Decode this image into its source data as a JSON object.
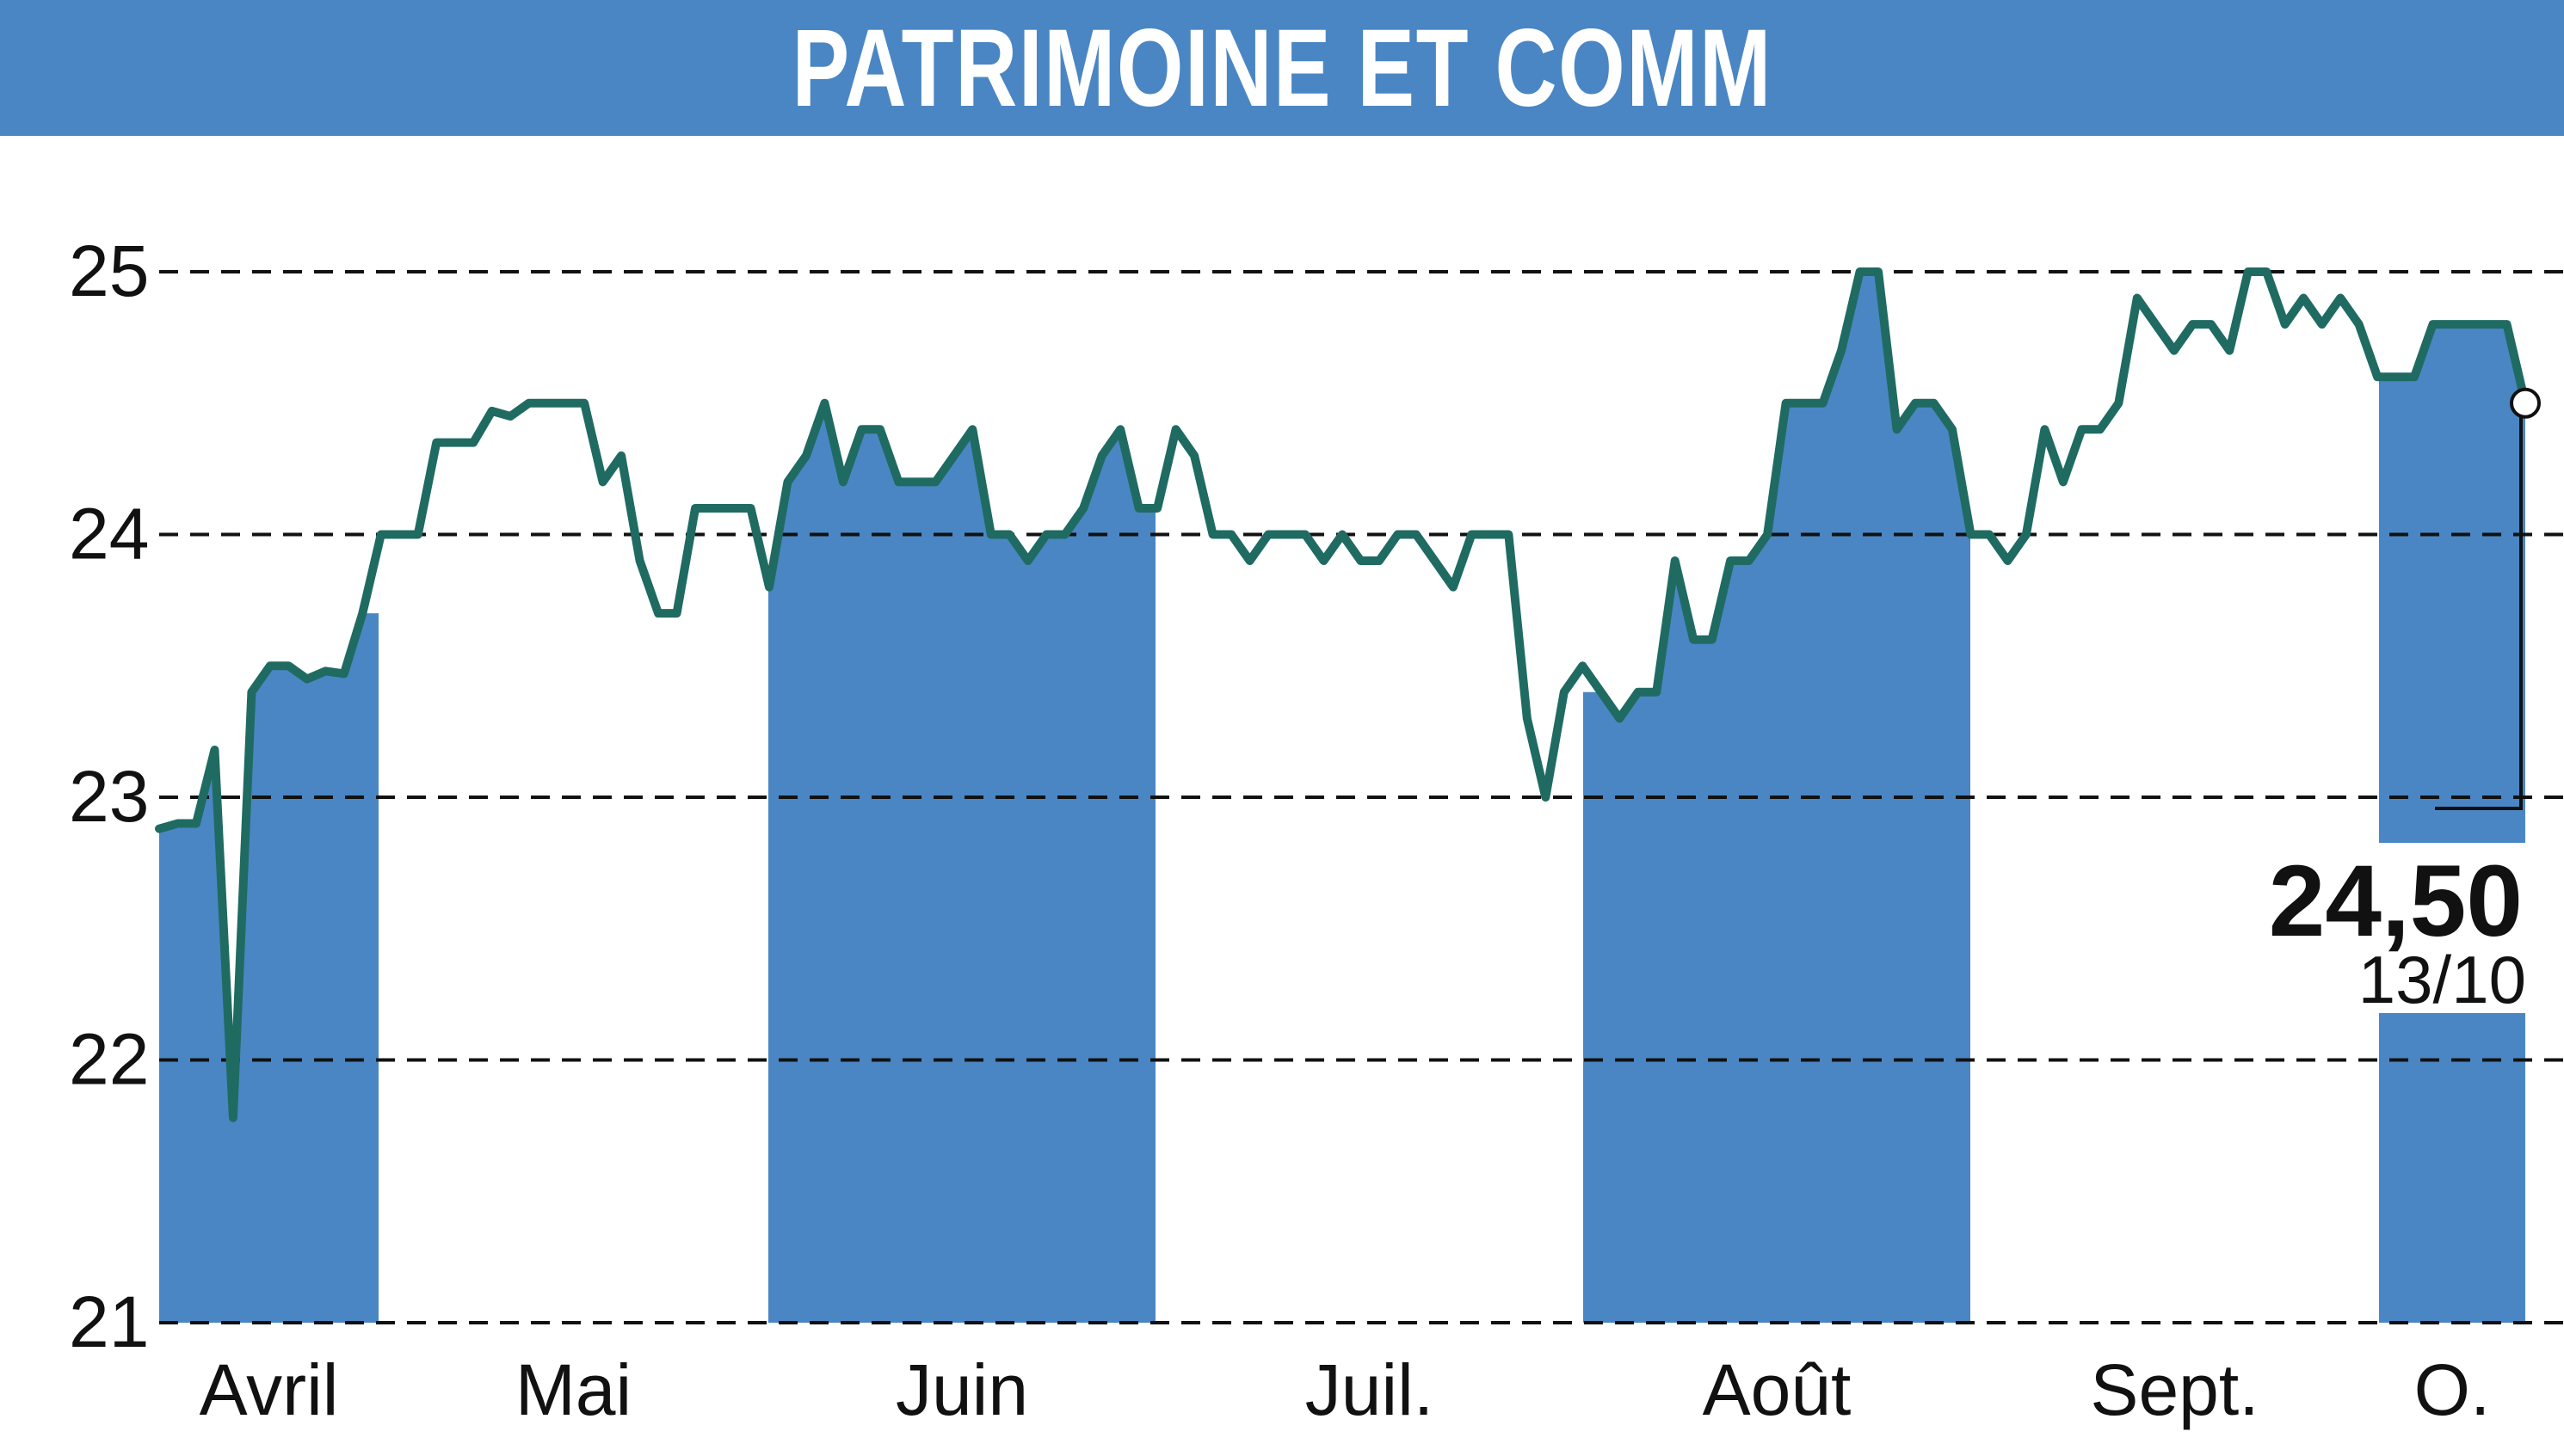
{
  "title": "PATRIMOINE ET COMM",
  "chart_data": {
    "type": "line",
    "y_ticks": [
      "25",
      "24",
      "23",
      "22",
      "21"
    ],
    "ylim": [
      21,
      25
    ],
    "months": [
      "Avril",
      "Mai",
      "Juin",
      "Juil.",
      "Août",
      "Sept.",
      "O."
    ],
    "last_value": "24,50",
    "last_date": "13/10",
    "grid": "dashed horizontal",
    "colors": {
      "band": "#4a86c4",
      "line": "#1f6b62",
      "title_bar": "#4a86c4"
    },
    "series": [
      {
        "values": [
          22.88,
          22.9,
          22.9,
          23.18,
          21.78,
          23.4,
          23.5,
          23.5,
          23.45,
          23.48,
          23.47,
          23.7,
          24.0,
          24.0,
          24.0,
          24.35,
          24.35,
          24.35,
          24.47,
          24.45,
          24.5,
          24.5,
          24.5,
          24.5,
          24.2,
          24.3,
          23.9,
          23.7,
          23.7,
          24.1,
          24.1,
          24.1,
          24.1,
          23.8,
          24.2,
          24.3,
          24.5,
          24.2,
          24.4,
          24.4,
          24.2,
          24.2,
          24.2,
          24.3,
          24.4,
          24.0,
          24.0,
          23.9,
          24.0,
          24.0,
          24.1,
          24.3,
          24.4,
          24.1,
          24.1,
          24.4,
          24.3,
          24.0,
          24.0,
          23.9,
          24.0,
          24.0,
          24.0,
          23.9,
          24.0,
          23.9,
          23.9,
          24.0,
          24.0,
          23.9,
          23.8,
          24.0,
          24.0,
          24.0,
          23.3,
          23.0,
          23.4,
          23.5,
          23.4,
          23.3,
          23.4,
          23.4,
          23.9,
          23.6,
          23.6,
          23.9,
          23.9,
          24.0,
          24.5,
          24.5,
          24.5,
          24.7,
          25.0,
          25.0,
          24.4,
          24.5,
          24.5,
          24.4,
          24.0,
          24.0,
          23.9,
          24.0,
          24.4,
          24.2,
          24.4,
          24.4,
          24.5,
          24.9,
          24.8,
          24.7,
          24.8,
          24.8,
          24.7,
          25.0,
          25.0,
          24.8,
          24.9,
          24.8,
          24.9,
          24.8,
          24.6,
          24.6,
          24.6,
          24.8,
          24.8,
          24.8,
          24.8,
          24.8,
          24.5
        ]
      }
    ]
  }
}
